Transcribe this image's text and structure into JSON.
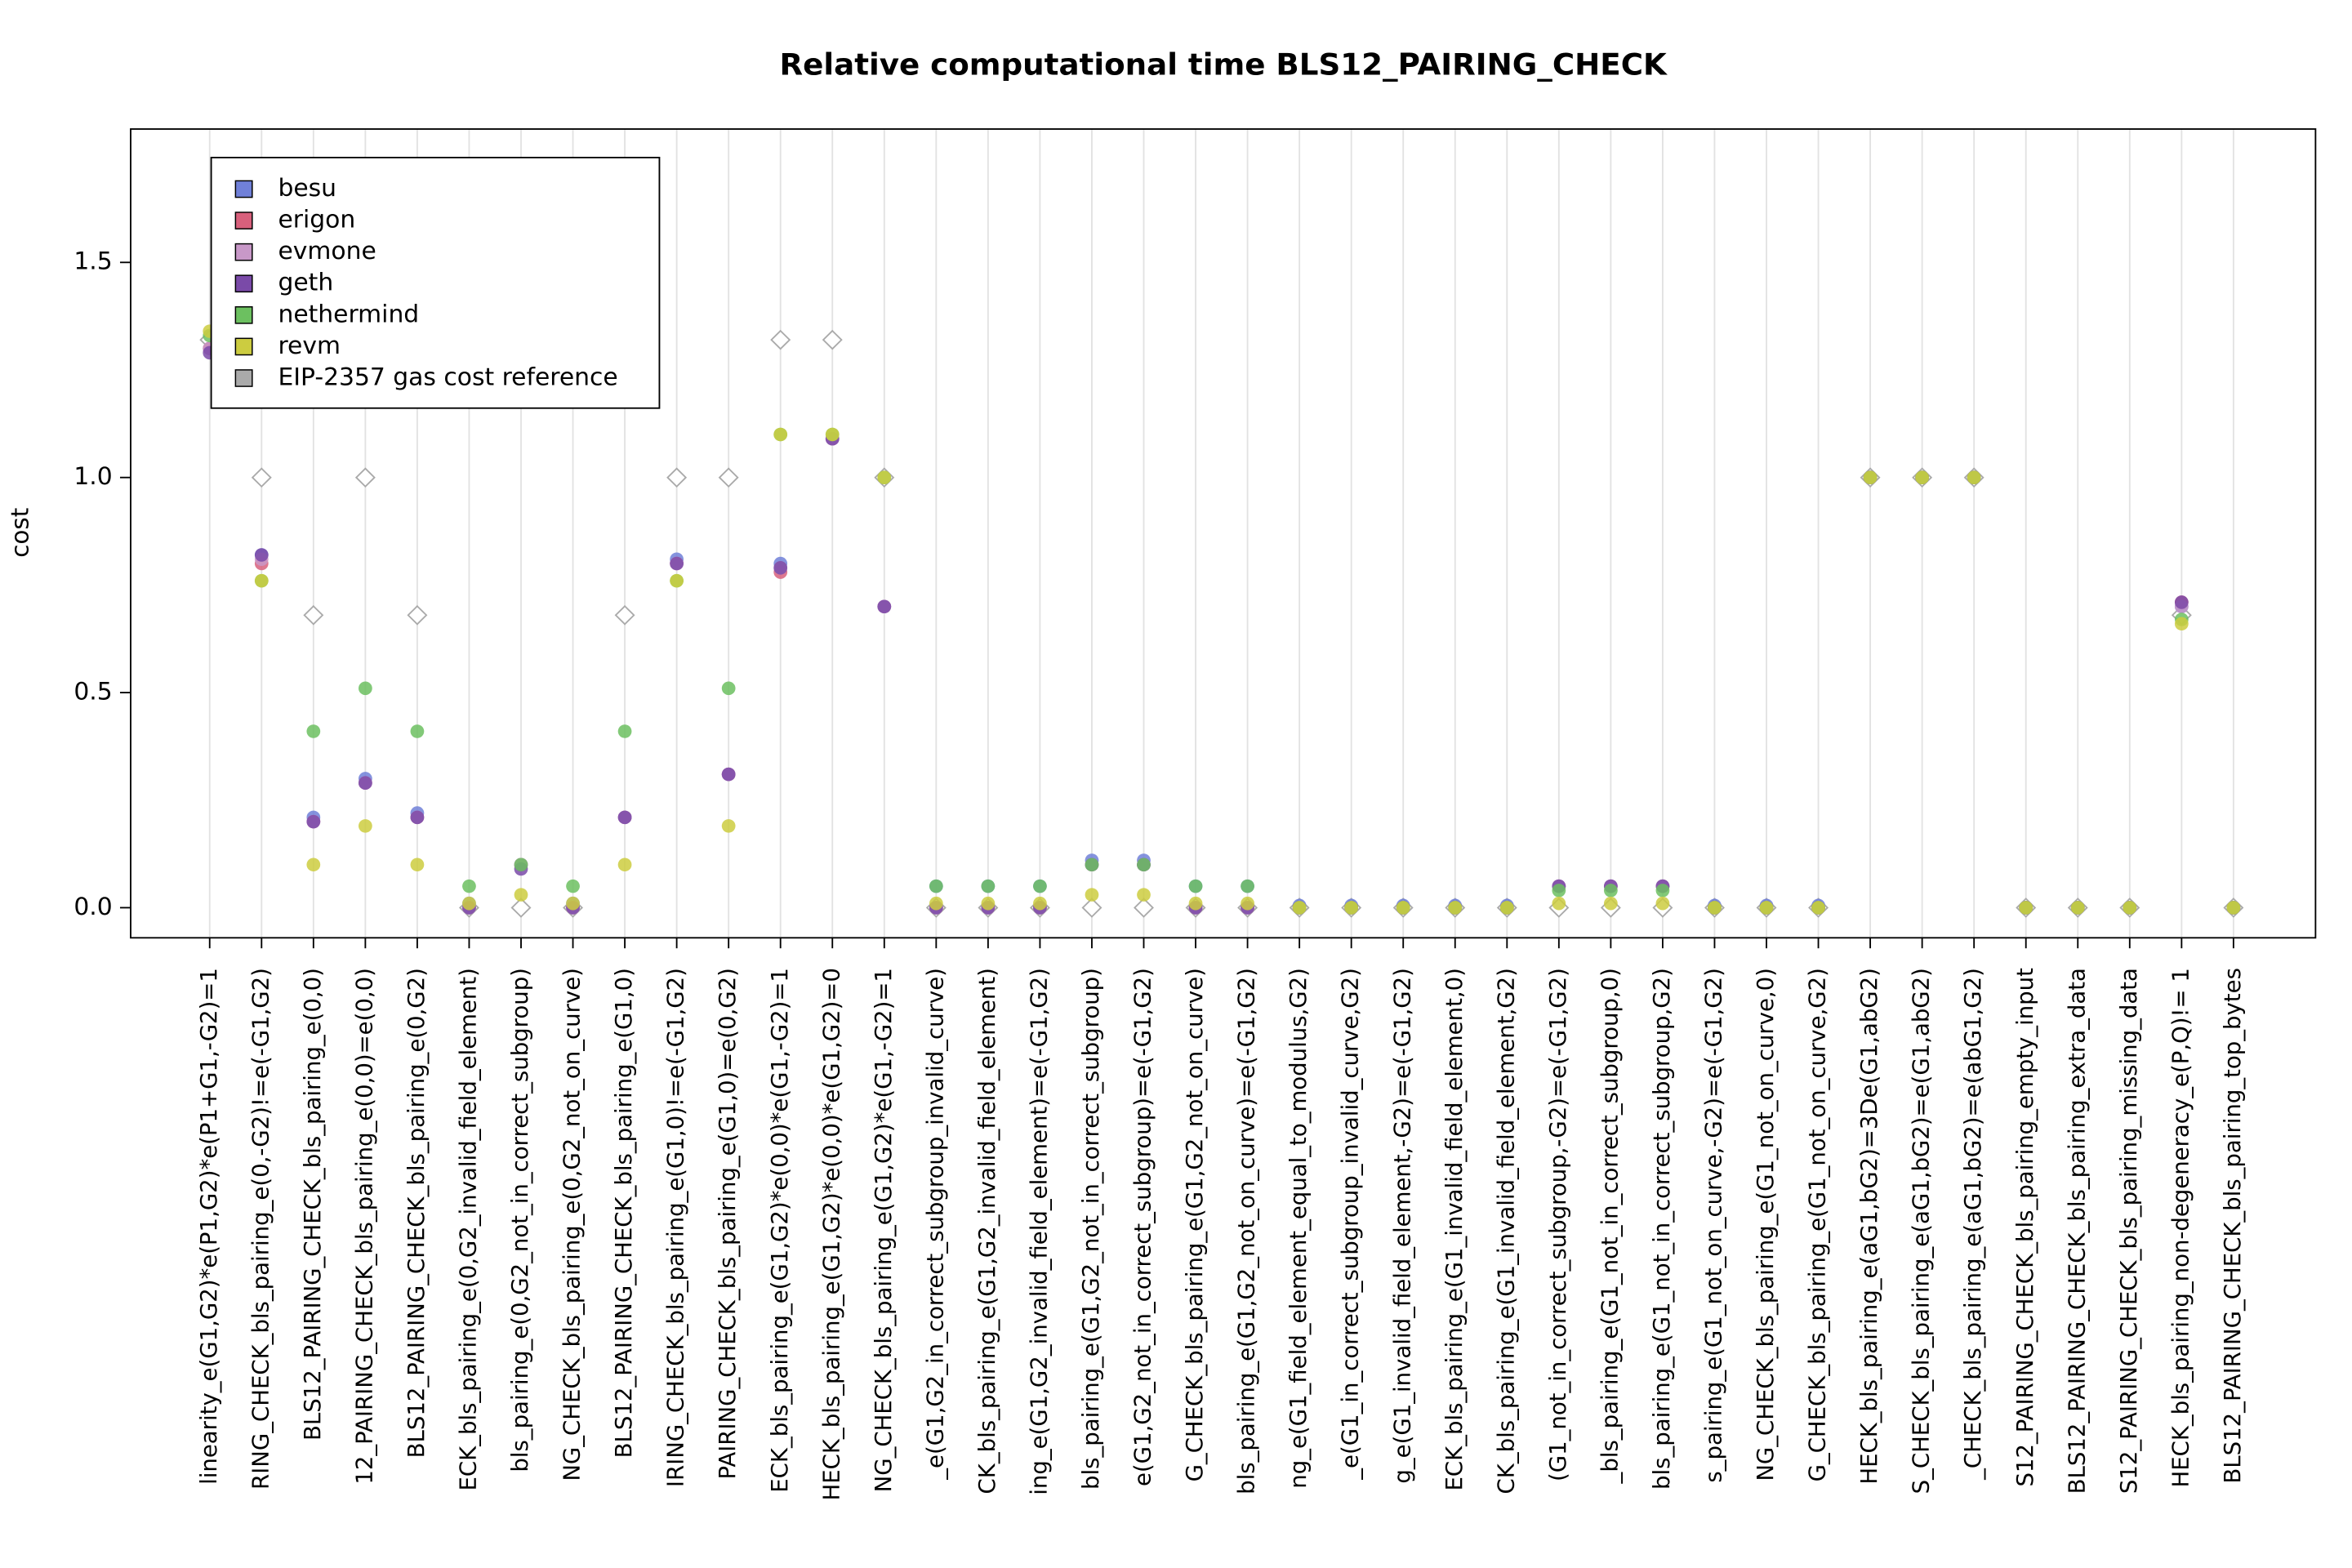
{
  "chart_data": {
    "type": "dot",
    "title": "Relative computational time BLS12_PAIRING_CHECK",
    "y_label": "cost",
    "categories": [
      "linearity_e(G1,G2)*e(P1,G2)*e(P1+G1,-G2)=1",
      "RING_CHECK_bls_pairing_e(0,-G2)!=e(-G1,G2)",
      "BLS12_PAIRING_CHECK_bls_pairing_e(0,0)",
      "12_PAIRING_CHECK_bls_pairing_e(0,0)=e(0,0)",
      "BLS12_PAIRING_CHECK_bls_pairing_e(0,G2)",
      "ECK_bls_pairing_e(0,G2_invalid_field_element)",
      "bls_pairing_e(0,G2_not_in_correct_subgroup)",
      "NG_CHECK_bls_pairing_e(0,G2_not_on_curve)",
      "BLS12_PAIRING_CHECK_bls_pairing_e(G1,0)",
      "IRING_CHECK_bls_pairing_e(G1,0)!=e(-G1,G2)",
      "PAIRING_CHECK_bls_pairing_e(G1,0)=e(0,G2)",
      "ECK_bls_pairing_e(G1,G2)*e(0,0)*e(G1,-G2)=1",
      "HECK_bls_pairing_e(G1,G2)*e(0,0)*e(G1,G2)=0",
      "NG_CHECK_bls_pairing_e(G1,G2)*e(G1,-G2)=1",
      "_e(G1,G2_in_correct_subgroup_invalid_curve)",
      "CK_bls_pairing_e(G1,G2_invalid_field_element)",
      "ing_e(G1,G2_invalid_field_element)=e(-G1,G2)",
      "bls_pairing_e(G1,G2_not_in_correct_subgroup)",
      "e(G1,G2_not_in_correct_subgroup)=e(-G1,G2)",
      "G_CHECK_bls_pairing_e(G1,G2_not_on_curve)",
      "bls_pairing_e(G1,G2_not_on_curve)=e(-G1,G2)",
      "ng_e(G1_field_element_equal_to_modulus,G2)",
      "_e(G1_in_correct_subgroup_invalid_curve,G2)",
      "g_e(G1_invalid_field_element,-G2)=e(-G1,G2)",
      "ECK_bls_pairing_e(G1_invalid_field_element,0)",
      "CK_bls_pairing_e(G1_invalid_field_element,G2)",
      "(G1_not_in_correct_subgroup,-G2)=e(-G1,G2)",
      "_bls_pairing_e(G1_not_in_correct_subgroup,0)",
      "bls_pairing_e(G1_not_in_correct_subgroup,G2)",
      "s_pairing_e(G1_not_on_curve,-G2)=e(-G1,G2)",
      "NG_CHECK_bls_pairing_e(G1_not_on_curve,0)",
      "G_CHECK_bls_pairing_e(G1_not_on_curve,G2)",
      "HECK_bls_pairing_e(aG1,bG2)=3De(G1,abG2)",
      "S_CHECK_bls_pairing_e(aG1,bG2)=e(G1,abG2)",
      "_CHECK_bls_pairing_e(aG1,bG2)=e(abG1,G2)",
      "S12_PAIRING_CHECK_bls_pairing_empty_input",
      "BLS12_PAIRING_CHECK_bls_pairing_extra_data",
      "S12_PAIRING_CHECK_bls_pairing_missing_data",
      "HECK_bls_pairing_non-degeneracy_e(P,Q)!= 1",
      "BLS12_PAIRING_CHECK_bls_pairing_top_bytes"
    ],
    "series": [
      {
        "name": "EIP-2357 gas cost reference",
        "color": "#aaaaaa",
        "marker": "diamond",
        "values": [
          1.32,
          1.0,
          0.68,
          1.0,
          0.68,
          0,
          0,
          0,
          0.68,
          1.0,
          1.0,
          1.32,
          1.32,
          1.0,
          0,
          0,
          0,
          0,
          0,
          0,
          0,
          0,
          0,
          0,
          0,
          0,
          0,
          0,
          0,
          0,
          0,
          0,
          1.0,
          1.0,
          1.0,
          0,
          0,
          0,
          0.68,
          0
        ]
      },
      {
        "name": "besu",
        "color": "#7080d8",
        "marker": "circle",
        "values": [
          1.3,
          0.82,
          0.21,
          0.3,
          0.22,
          0.01,
          0.1,
          0.01,
          0.21,
          0.81,
          0.31,
          0.8,
          1.09,
          0.7,
          0.05,
          0.05,
          0.05,
          0.11,
          0.11,
          0.05,
          0.05,
          0.005,
          0.005,
          0.005,
          0.005,
          0.005,
          0.05,
          0.05,
          0.05,
          0.005,
          0.005,
          0.005,
          1.0,
          1.0,
          1.0,
          0,
          0,
          0,
          0.7,
          0
        ]
      },
      {
        "name": "erigon",
        "color": "#d8607c",
        "marker": "circle",
        "values": [
          1.3,
          0.8,
          0.2,
          0.29,
          0.21,
          0,
          0.1,
          0,
          0.21,
          0.8,
          0.31,
          0.78,
          1.09,
          0.7,
          0,
          0,
          0,
          0.1,
          0.1,
          0,
          0,
          0,
          0,
          0,
          0,
          0,
          0.05,
          0.05,
          0.05,
          0,
          0,
          0,
          1.0,
          1.0,
          1.0,
          0,
          0,
          0,
          0.71,
          0
        ]
      },
      {
        "name": "evmone",
        "color": "#c898c8",
        "marker": "circle",
        "values": [
          1.3,
          0.81,
          0.2,
          0.29,
          0.21,
          0,
          0.1,
          0,
          0.21,
          0.8,
          0.31,
          0.79,
          1.09,
          0.7,
          0,
          0,
          0,
          0.1,
          0.1,
          0,
          0,
          0,
          0,
          0,
          0,
          0,
          0.05,
          0.05,
          0.05,
          0,
          0,
          0,
          1.0,
          1.0,
          1.0,
          0,
          0,
          0,
          0.7,
          0
        ]
      },
      {
        "name": "geth",
        "color": "#7a4aa8",
        "marker": "circle",
        "values": [
          1.29,
          0.82,
          0.2,
          0.29,
          0.21,
          0,
          0.09,
          0,
          0.21,
          0.8,
          0.31,
          0.79,
          1.09,
          0.7,
          0,
          0,
          0,
          0.1,
          0.1,
          0,
          0,
          0,
          0,
          0,
          0,
          0,
          0.05,
          0.05,
          0.05,
          0,
          0,
          0,
          1.0,
          1.0,
          1.0,
          0,
          0,
          0,
          0.71,
          0
        ]
      },
      {
        "name": "nethermind",
        "color": "#6cc060",
        "marker": "circle",
        "values": [
          1.33,
          0.76,
          0.41,
          0.51,
          0.41,
          0.05,
          0.1,
          0.05,
          0.41,
          0.76,
          0.51,
          1.1,
          1.1,
          1.0,
          0.05,
          0.05,
          0.05,
          0.1,
          0.1,
          0.05,
          0.05,
          0,
          0,
          0,
          0,
          0,
          0.04,
          0.04,
          0.04,
          0,
          0,
          0,
          1.0,
          1.0,
          1.0,
          0,
          0,
          0,
          0.67,
          0
        ]
      },
      {
        "name": "revm",
        "color": "#cccc40",
        "marker": "circle",
        "values": [
          1.34,
          0.76,
          0.1,
          0.19,
          0.1,
          0.01,
          0.03,
          0.01,
          0.1,
          0.76,
          0.19,
          1.1,
          1.1,
          1.0,
          0.01,
          0.01,
          0.01,
          0.03,
          0.03,
          0.01,
          0.01,
          0,
          0,
          0,
          0,
          0,
          0.01,
          0.01,
          0.01,
          0,
          0,
          0,
          1.0,
          1.0,
          1.0,
          0,
          0,
          0,
          0.66,
          0
        ]
      }
    ],
    "ylim": [
      -0.07,
      1.81
    ],
    "yticks": [
      {
        "value": 0,
        "label": "0.0"
      },
      {
        "value": 0.5,
        "label": "0.5"
      },
      {
        "value": 1,
        "label": "1.0"
      },
      {
        "value": 1.5,
        "label": "1.5"
      }
    ],
    "grid": true,
    "legend": "top-left"
  }
}
